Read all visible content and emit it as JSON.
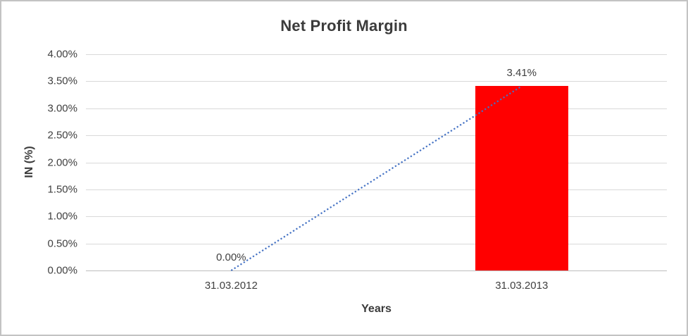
{
  "chart_data": {
    "type": "bar",
    "title": "Net Profit Margin",
    "categories": [
      "31.03.2012",
      "31.03.2013"
    ],
    "values": [
      0.0,
      3.41
    ],
    "data_labels": [
      "0.00%",
      "3.41%"
    ],
    "xlabel": "Years",
    "ylabel": "IN (%)",
    "ylim": [
      0,
      4.0
    ],
    "ytick_step": 0.5,
    "ytick_labels": [
      "4.00%",
      "3.50%",
      "3.00%",
      "2.50%",
      "2.00%",
      "1.50%",
      "1.00%",
      "0.50%",
      "0.00%"
    ],
    "grid": true,
    "legend": "none",
    "bar_color": "#ff0000",
    "trendline": {
      "style": "dotted",
      "color": "#4472c4",
      "from": [
        0,
        0.0
      ],
      "to": [
        1,
        3.41
      ]
    }
  }
}
